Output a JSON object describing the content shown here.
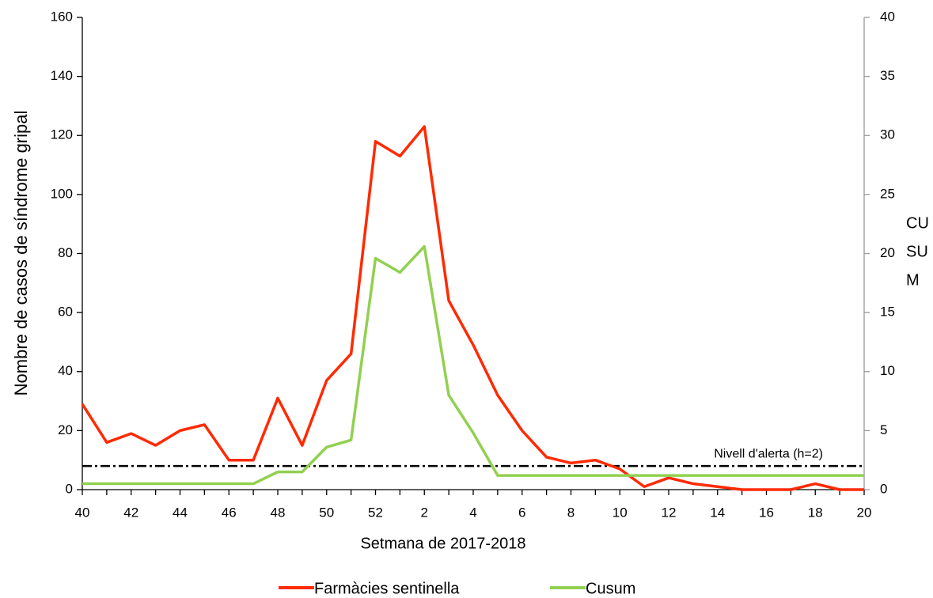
{
  "chart_data": {
    "type": "line",
    "xlabel": "Setmana de 2017-2018",
    "ylabel": "Nombre de casos de síndrome gripal",
    "y2label": [
      "CU",
      "SU",
      "M"
    ],
    "categories": [
      "40",
      null,
      "42",
      null,
      "44",
      null,
      "46",
      null,
      "48",
      null,
      "50",
      null,
      "52",
      null,
      "2",
      null,
      "4",
      null,
      "6",
      null,
      "8",
      null,
      "10",
      null,
      "12",
      null,
      "14",
      null,
      "16",
      null,
      "18",
      null,
      "20"
    ],
    "series": [
      {
        "name": "Farmàcies sentinella",
        "color": "#ff2a00",
        "values": [
          29,
          16,
          19,
          15,
          20,
          22,
          10,
          10,
          31,
          15,
          37,
          46,
          118,
          113,
          123,
          64,
          49,
          32,
          20,
          11,
          9,
          10,
          7,
          1,
          4,
          2,
          1,
          0,
          0,
          0,
          2,
          0,
          0
        ]
      },
      {
        "name": "Cusum",
        "color": "#92d050",
        "axis": "y2",
        "values": [
          0.5,
          0.5,
          0.5,
          0.5,
          0.5,
          0.5,
          0.5,
          0.5,
          1.5,
          1.5,
          3.6,
          4.2,
          19.6,
          18.4,
          20.6,
          8.0,
          4.8,
          1.2,
          1.2,
          1.2,
          1.2,
          1.2,
          1.2,
          1.2,
          1.2,
          1.2,
          1.2,
          1.2,
          1.2,
          1.2,
          1.2,
          1.2,
          1.2
        ]
      }
    ],
    "alert_line": {
      "value": 8,
      "label": "Nivell d'alerta (h=2)"
    },
    "ylim": [
      0,
      160
    ],
    "yticks": [
      0,
      20,
      40,
      60,
      80,
      100,
      120,
      140,
      160
    ],
    "y2lim": [
      0,
      40
    ],
    "y2ticks": [
      0,
      5,
      10,
      15,
      20,
      25,
      30,
      35,
      40
    ],
    "legend": "bottom"
  }
}
